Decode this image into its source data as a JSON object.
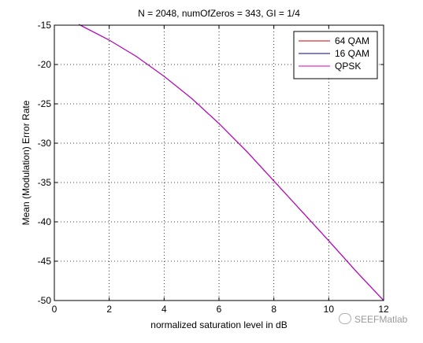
{
  "chart_data": {
    "type": "line",
    "title": "N = 2048, numOfZeros = 343, GI = 1/4",
    "xlabel": "normalized saturation level in dB",
    "ylabel": "Mean (Modulation) Error Rate",
    "xlim": [
      0,
      12
    ],
    "ylim": [
      -50,
      -15
    ],
    "xticks": [
      0,
      2,
      4,
      6,
      8,
      10,
      12
    ],
    "yticks": [
      -15,
      -20,
      -25,
      -30,
      -35,
      -40,
      -45,
      -50
    ],
    "grid": true,
    "legend_position": "top-right",
    "x": [
      0.9,
      1,
      2,
      3,
      4,
      5,
      6,
      7,
      8,
      9,
      10,
      11,
      12
    ],
    "series": [
      {
        "name": "64 QAM",
        "color": "#cc0000",
        "values": [
          -14.9,
          -15.1,
          -16.9,
          -19.0,
          -21.5,
          -24.3,
          -27.5,
          -31.0,
          -34.8,
          -38.6,
          -42.4,
          -46.3,
          -50.0
        ]
      },
      {
        "name": "16 QAM",
        "color": "#000099",
        "values": [
          -14.9,
          -15.1,
          -16.9,
          -19.0,
          -21.5,
          -24.3,
          -27.5,
          -31.0,
          -34.8,
          -38.6,
          -42.4,
          -46.3,
          -50.0
        ]
      },
      {
        "name": "QPSK",
        "color": "#cc00cc",
        "values": [
          -14.9,
          -15.1,
          -16.9,
          -19.0,
          -21.5,
          -24.3,
          -27.5,
          -31.0,
          -34.8,
          -38.6,
          -42.4,
          -46.3,
          -50.0
        ]
      }
    ]
  },
  "watermark": {
    "text": "SEEFMatlab"
  }
}
